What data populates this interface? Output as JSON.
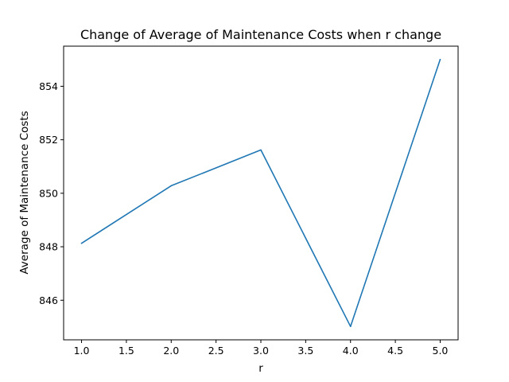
{
  "chart_data": {
    "type": "line",
    "title": "Change of Average of Maintenance Costs when r change",
    "xlabel": "r",
    "ylabel": "Average of Maintenance Costs",
    "x": [
      1.0,
      2.0,
      3.0,
      4.0,
      5.0
    ],
    "series": [
      {
        "values": [
          848.13,
          850.28,
          851.62,
          845.02,
          855.0
        ],
        "color": "#1f77b4"
      }
    ],
    "xlim": [
      0.8,
      5.2
    ],
    "ylim": [
      844.52,
      855.5
    ],
    "xticks": [
      1.0,
      1.5,
      2.0,
      2.5,
      3.0,
      3.5,
      4.0,
      4.5,
      5.0
    ],
    "xtick_labels": [
      "1.0",
      "1.5",
      "2.0",
      "2.5",
      "3.0",
      "3.5",
      "4.0",
      "4.5",
      "5.0"
    ],
    "yticks": [
      846,
      848,
      850,
      852,
      854
    ],
    "ytick_labels": [
      "846",
      "848",
      "850",
      "852",
      "854"
    ],
    "grid": false,
    "legend": false
  }
}
